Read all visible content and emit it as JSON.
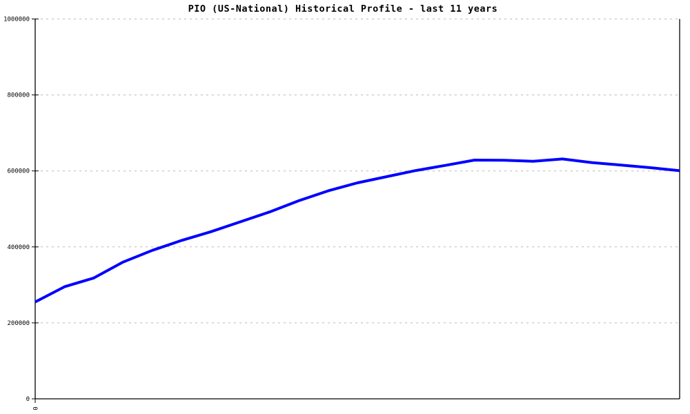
{
  "header": {
    "title": "PIO (US-National) Historical Profile - last 11 years"
  },
  "chart_data": {
    "type": "line",
    "title": "PIO (US-National) Historical Profile - last 11 years",
    "xlabel": "",
    "ylabel": "",
    "legend": "none",
    "grid": "horizontal-dashed",
    "axis_color": "#000000",
    "grid_color": "#b8b8b8",
    "background_color": "#ffffff",
    "xlim": [
      0,
      11
    ],
    "ylim": [
      0,
      1000000
    ],
    "yticks": [
      0,
      200000,
      400000,
      600000,
      800000,
      1000000
    ],
    "ytick_labels": [
      "0",
      "200000",
      "400000",
      "600000",
      "800000",
      "1000000"
    ],
    "xticks": [
      {
        "value": 0,
        "label": "0",
        "rotated": true
      }
    ],
    "x": [
      0,
      0.5,
      1,
      1.5,
      2,
      2.5,
      3,
      3.5,
      4,
      4.5,
      5,
      5.5,
      6,
      6.5,
      7,
      7.5,
      8,
      8.5,
      9,
      9.5,
      10,
      10.5,
      11
    ],
    "series": [
      {
        "name": "PIO (US-National)",
        "color": "#0000ff",
        "line_width": 4,
        "values": [
          255000,
          295000,
          318000,
          360000,
          391000,
          417000,
          440000,
          466000,
          492000,
          521500,
          547500,
          568500,
          585000,
          601000,
          614500,
          628500,
          628000,
          625500,
          631500,
          622000,
          615500,
          608500,
          600500
        ]
      }
    ]
  }
}
